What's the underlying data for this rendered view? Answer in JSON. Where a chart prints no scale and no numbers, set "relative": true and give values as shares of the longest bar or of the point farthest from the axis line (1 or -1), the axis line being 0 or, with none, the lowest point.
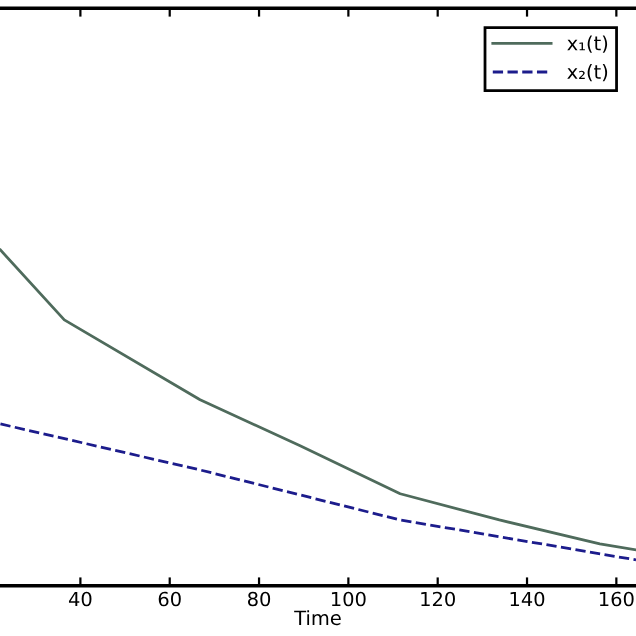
{
  "chart_data": {
    "type": "line",
    "relative": true,
    "xlabel": "Time",
    "xlim": [
      22,
      164.4
    ],
    "xticks": [
      40,
      60,
      80,
      100,
      120,
      140,
      160
    ],
    "legend": "top right",
    "grid": false,
    "series": [
      {
        "name": "x₁(t)",
        "color": "#4f6b5c",
        "line_style": "solid",
        "x": [
          22.1,
          36.4,
          66.8,
          89.2,
          111.6,
          133.8,
          156.3,
          164.4
        ],
        "values": [
          1,
          0.792,
          0.554,
          0.417,
          0.274,
          0.196,
          0.125,
          0.107
        ]
      },
      {
        "name": "x₂(t)",
        "color": "#1c1c8c",
        "line_style": "dashed",
        "x": [
          22.1,
          66.8,
          111.6,
          164.4
        ],
        "values": [
          0.482,
          0.345,
          0.196,
          0.077
        ]
      }
    ]
  }
}
